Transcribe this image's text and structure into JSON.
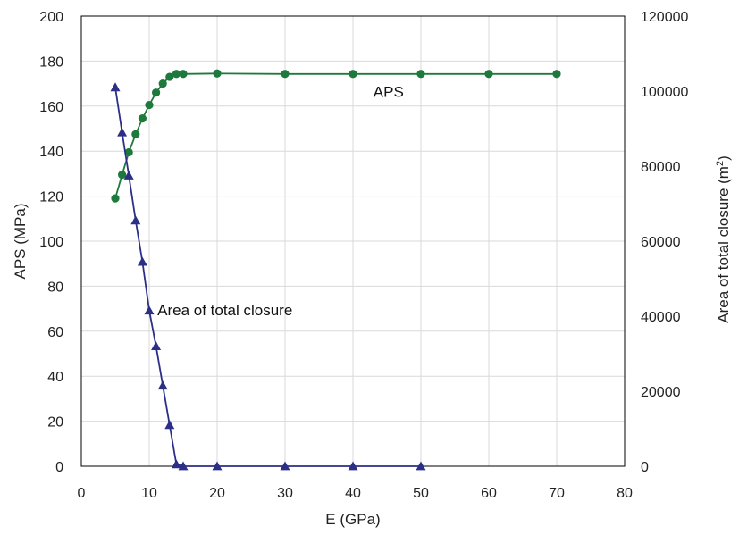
{
  "chart_data": {
    "type": "line",
    "grid": true,
    "xlabel": "E (GPa)",
    "ylabel_left": "APS (MPa)",
    "ylabel_right_prefix": "Area of total closure (m",
    "ylabel_right_sup": "2",
    "ylabel_right_suffix": ")",
    "xlim": [
      0,
      80
    ],
    "ylim_left": [
      0,
      200
    ],
    "ylim_right": [
      0,
      120000
    ],
    "xticks": [
      "0",
      "10",
      "20",
      "30",
      "40",
      "50",
      "60",
      "70",
      "80"
    ],
    "yticks_left": [
      "0",
      "20",
      "40",
      "60",
      "80",
      "100",
      "120",
      "140",
      "160",
      "180",
      "200"
    ],
    "yticks_right": [
      "0",
      "20000",
      "40000",
      "60000",
      "80000",
      "100000",
      "120000"
    ],
    "series": [
      {
        "name": "APS",
        "axis": "left",
        "color": "#1e7a3c",
        "marker": "circle",
        "x": [
          5,
          6,
          7,
          8,
          9,
          10,
          11,
          12,
          13,
          14,
          15,
          20,
          30,
          40,
          50,
          60,
          70
        ],
        "y": [
          119,
          129.5,
          139.5,
          147.5,
          154.5,
          160.5,
          166,
          170,
          173,
          174.3,
          174.3,
          174.5,
          174.3,
          174.3,
          174.3,
          174.3,
          174.3
        ]
      },
      {
        "name": "Area of total closure",
        "axis": "right",
        "color": "#2b2f86",
        "marker": "triangle",
        "x": [
          5,
          6,
          7,
          8,
          9,
          10,
          11,
          12,
          13,
          14,
          15,
          20,
          30,
          40,
          50
        ],
        "y": [
          101000,
          89000,
          77500,
          65500,
          54500,
          41500,
          32000,
          21500,
          11000,
          500,
          0,
          0,
          0,
          0,
          0
        ]
      }
    ],
    "annotations": [
      {
        "text": "APS",
        "x": 43,
        "y": 164,
        "axis": "left"
      },
      {
        "text": "Area of total closure",
        "x": 11.2,
        "y": 67,
        "axis": "left"
      }
    ]
  }
}
